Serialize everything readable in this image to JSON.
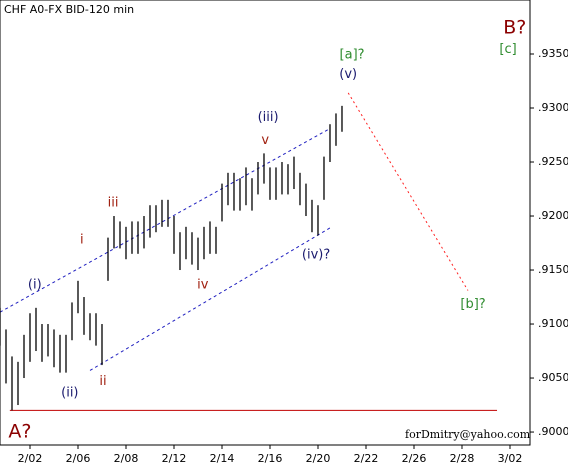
{
  "chart_data": {
    "type": "ohlc",
    "title": "CHF A0-FX BID-120 min",
    "footer": "forDmitry@yahoo.com",
    "bar_color": "#000000",
    "x": [
      -0.625,
      -0.5,
      -0.375,
      -0.25,
      -0.125,
      0,
      0.125,
      0.25,
      0.375,
      0.5,
      0.625,
      0.75,
      0.875,
      1,
      1.125,
      1.25,
      1.375,
      1.5,
      1.625,
      1.75,
      1.875,
      2,
      2.125,
      2.25,
      2.375,
      2.5,
      2.625,
      2.75,
      2.875,
      3,
      3.125,
      3.25,
      3.375,
      3.5,
      3.625,
      3.75,
      3.875,
      4,
      4.125,
      4.25,
      4.375,
      4.5,
      4.625,
      4.75,
      4.875,
      5,
      5.125,
      5.25,
      5.375,
      5.5,
      5.625,
      5.75,
      5.875,
      6,
      6.125,
      6.25,
      6.375,
      6.5
    ],
    "high": [
      0.9115,
      0.9095,
      0.907,
      0.9065,
      0.909,
      0.911,
      0.9115,
      0.91,
      0.91,
      0.9095,
      0.909,
      0.909,
      0.912,
      0.914,
      0.9125,
      0.911,
      0.911,
      0.91,
      0.918,
      0.92,
      0.9195,
      0.919,
      0.9195,
      0.9195,
      0.92,
      0.921,
      0.921,
      0.9215,
      0.9215,
      0.92,
      0.9185,
      0.919,
      0.9185,
      0.918,
      0.919,
      0.9195,
      0.919,
      0.923,
      0.924,
      0.924,
      0.9235,
      0.9245,
      0.9235,
      0.925,
      0.9258,
      0.9245,
      0.9245,
      0.925,
      0.9248,
      0.9255,
      0.924,
      0.923,
      0.9215,
      0.921,
      0.9255,
      0.9285,
      0.9295,
      0.9302
    ],
    "low": [
      0.908,
      0.9045,
      0.902,
      0.9025,
      0.905,
      0.9065,
      0.9075,
      0.9065,
      0.907,
      0.906,
      0.9055,
      0.9055,
      0.9085,
      0.911,
      0.909,
      0.9085,
      0.908,
      0.9062,
      0.914,
      0.917,
      0.917,
      0.916,
      0.9165,
      0.9165,
      0.917,
      0.918,
      0.9185,
      0.919,
      0.919,
      0.9165,
      0.915,
      0.916,
      0.9155,
      0.915,
      0.916,
      0.9165,
      0.9165,
      0.9195,
      0.921,
      0.9205,
      0.9205,
      0.921,
      0.9205,
      0.922,
      0.923,
      0.9215,
      0.9215,
      0.922,
      0.922,
      0.9225,
      0.921,
      0.92,
      0.9185,
      0.9182,
      0.9215,
      0.925,
      0.9265,
      0.9278
    ],
    "xlim": [
      -0.625,
      10.417
    ],
    "ylim": [
      0.8988,
      0.94
    ],
    "xticks": [
      {
        "value": 0,
        "label": "2/02"
      },
      {
        "value": 1,
        "label": "2/06"
      },
      {
        "value": 2,
        "label": "2/08"
      },
      {
        "value": 3,
        "label": "2/12"
      },
      {
        "value": 4,
        "label": "2/14"
      },
      {
        "value": 5,
        "label": "2/16"
      },
      {
        "value": 6,
        "label": "2/20"
      },
      {
        "value": 7,
        "label": "2/22"
      },
      {
        "value": 8,
        "label": "2/26"
      },
      {
        "value": 9,
        "label": "2/28"
      },
      {
        "value": 10,
        "label": "3/02"
      }
    ],
    "yticks": [
      {
        "value": 0.9,
        "label": ".9000"
      },
      {
        "value": 0.905,
        "label": ".9050"
      },
      {
        "value": 0.91,
        "label": ".9100"
      },
      {
        "value": 0.915,
        "label": ".9150"
      },
      {
        "value": 0.92,
        "label": ".9200"
      },
      {
        "value": 0.925,
        "label": ".9250"
      },
      {
        "value": 0.93,
        "label": ".9300"
      },
      {
        "value": 0.935,
        "label": ".9350"
      }
    ],
    "lines": [
      {
        "x": [
          -0.42,
          9.73
        ],
        "y": [
          0.902,
          0.902
        ],
        "color": "#c00000",
        "dash": "none"
      },
      {
        "x": [
          -0.625,
          6.25
        ],
        "y": [
          0.9111,
          0.9281
        ],
        "color": "#2020c0",
        "dash": "3,3"
      },
      {
        "x": [
          1.25,
          6.25
        ],
        "y": [
          0.9057,
          0.9189
        ],
        "color": "#2020c0",
        "dash": "3,3"
      },
      {
        "x": [
          6.63,
          9.125
        ],
        "y": [
          0.9314,
          0.9131
        ],
        "color": "#ff2020",
        "dash": "2,3"
      }
    ],
    "annotations": [
      {
        "text": "A?",
        "x": -0.21,
        "y": 0.9,
        "color": "#8b0000",
        "size": "big"
      },
      {
        "text": "B?",
        "x": 10.1,
        "y": 0.9374,
        "color": "#8b0000",
        "size": "big"
      },
      {
        "text": "[c]",
        "x": 9.96,
        "y": 0.9354,
        "color": "#2e8b2e",
        "size": "lbl"
      },
      {
        "text": "[a]?",
        "x": 6.71,
        "y": 0.9349,
        "color": "#2e8b2e",
        "size": "lbl"
      },
      {
        "text": "(v)",
        "x": 6.63,
        "y": 0.9331,
        "color": "#1a1a6e",
        "size": "lbl"
      },
      {
        "text": "(iii)",
        "x": 4.96,
        "y": 0.9291,
        "color": "#1a1a6e",
        "size": "lbl"
      },
      {
        "text": "v",
        "x": 4.9,
        "y": 0.927,
        "color": "#a02010",
        "size": "lbl"
      },
      {
        "text": "iii",
        "x": 1.73,
        "y": 0.9212,
        "color": "#a02010",
        "size": "lbl"
      },
      {
        "text": "i",
        "x": 1.08,
        "y": 0.9178,
        "color": "#a02010",
        "size": "lbl"
      },
      {
        "text": "(i)",
        "x": 0.1,
        "y": 0.9136,
        "color": "#1a1a6e",
        "size": "lbl"
      },
      {
        "text": "(ii)",
        "x": 0.83,
        "y": 0.9036,
        "color": "#1a1a6e",
        "size": "lbl"
      },
      {
        "text": "ii",
        "x": 1.52,
        "y": 0.9047,
        "color": "#a02010",
        "size": "lbl"
      },
      {
        "text": "iv",
        "x": 3.6,
        "y": 0.9136,
        "color": "#a02010",
        "size": "lbl"
      },
      {
        "text": "(iv)?",
        "x": 5.96,
        "y": 0.9164,
        "color": "#1a1a6e",
        "size": "lbl"
      },
      {
        "text": "[b]?",
        "x": 9.23,
        "y": 0.9118,
        "color": "#2e8b2e",
        "size": "lbl"
      }
    ]
  }
}
